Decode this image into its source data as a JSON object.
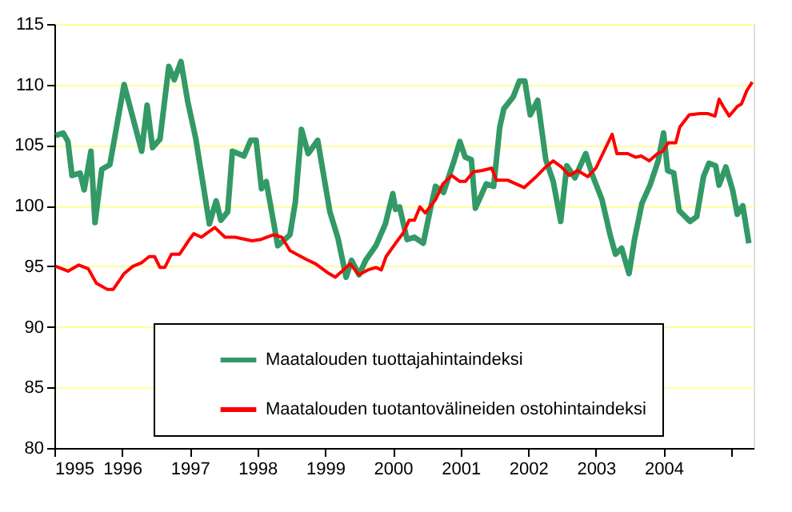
{
  "chart_data": {
    "type": "line",
    "xlim": [
      1995,
      2005.33
    ],
    "xticks": [
      1995,
      1996,
      1997,
      1998,
      1999,
      2000,
      2001,
      2002,
      2003,
      2004,
      {
        "value": 2005,
        "label": null
      }
    ],
    "ylim": [
      80,
      115
    ],
    "yticks": [
      80,
      85,
      90,
      95,
      100,
      105,
      110,
      115
    ],
    "grid": "y",
    "legend": "bottom",
    "line_style": "solid",
    "marker": "none",
    "series": [
      {
        "name": "Maatalouden tuottajahintaindeksi",
        "color": "#339966",
        "x": [
          1995.02,
          1995.13,
          1995.2,
          1995.26,
          1995.38,
          1995.44,
          1995.54,
          1995.6,
          1995.7,
          1995.82,
          1996.03,
          1996.29,
          1996.37,
          1996.45,
          1996.56,
          1996.69,
          1996.77,
          1996.87,
          1996.97,
          1997.09,
          1997.29,
          1997.39,
          1997.46,
          1997.56,
          1997.63,
          1997.8,
          1997.9,
          1997.98,
          1998.06,
          1998.13,
          1998.3,
          1998.48,
          1998.56,
          1998.65,
          1998.75,
          1998.89,
          1999.07,
          1999.19,
          1999.31,
          1999.39,
          1999.5,
          1999.6,
          1999.75,
          1999.89,
          2000.0,
          2000.04,
          2000.1,
          2000.21,
          2000.32,
          2000.45,
          2000.55,
          2000.63,
          2000.75,
          2000.91,
          2000.99,
          2001.07,
          2001.16,
          2001.22,
          2001.38,
          2001.49,
          2001.58,
          2001.64,
          2001.78,
          2001.87,
          2001.95,
          2002.03,
          2002.14,
          2002.26,
          2002.37,
          2002.48,
          2002.57,
          2002.69,
          2002.85,
          2002.95,
          2003.09,
          2003.21,
          2003.29,
          2003.38,
          2003.49,
          2003.57,
          2003.68,
          2003.8,
          2003.92,
          2004.0,
          2004.06,
          2004.15,
          2004.23,
          2004.39,
          2004.49,
          2004.59,
          2004.67,
          2004.77,
          2004.82,
          2004.92,
          2005.02,
          2005.09,
          2005.17,
          2005.26
        ],
        "values": [
          105.8,
          106,
          105.3,
          102.5,
          102.7,
          101.3,
          104.5,
          98.6,
          103,
          103.4,
          110,
          104.5,
          108.3,
          104.8,
          105.5,
          111.5,
          110.4,
          111.9,
          108.6,
          105.5,
          98.5,
          100.4,
          98.8,
          99.5,
          104.5,
          104.1,
          105.4,
          105.4,
          101.4,
          102,
          96.7,
          97.6,
          100.3,
          106.3,
          104.3,
          105.4,
          99.5,
          97.3,
          94.1,
          95.5,
          94.3,
          95.5,
          96.7,
          98.5,
          101,
          99.7,
          99.9,
          97.2,
          97.4,
          96.9,
          99.6,
          101.6,
          101.1,
          103.8,
          105.3,
          104,
          103.8,
          99.8,
          101.8,
          101.6,
          106.5,
          108,
          109,
          110.3,
          110.3,
          107.5,
          108.7,
          103.8,
          102,
          98.7,
          103.3,
          102.3,
          104.3,
          102.5,
          100.5,
          97.6,
          96,
          96.5,
          94.4,
          97.2,
          100.2,
          101.7,
          103.7,
          106,
          102.9,
          102.7,
          99.6,
          98.7,
          99.1,
          102.4,
          103.5,
          103.3,
          101.7,
          103.2,
          101.3,
          99.3,
          100,
          96.9
        ]
      },
      {
        "name": "Maatalouden tuotantovälineiden ostohintaindeksi",
        "color": "#ff0000",
        "x": [
          1995.02,
          1995.2,
          1995.36,
          1995.5,
          1995.62,
          1995.78,
          1995.87,
          1996.03,
          1996.16,
          1996.29,
          1996.4,
          1996.48,
          1996.56,
          1996.63,
          1996.73,
          1996.85,
          1996.98,
          1997.06,
          1997.17,
          1997.37,
          1997.52,
          1997.67,
          1997.92,
          1998.04,
          1998.24,
          1998.36,
          1998.48,
          1998.71,
          1998.86,
          1999.03,
          1999.15,
          1999.37,
          1999.5,
          1999.63,
          1999.75,
          1999.83,
          1999.9,
          2000.04,
          2000.16,
          2000.24,
          2000.32,
          2000.4,
          2000.48,
          2000.63,
          2000.74,
          2000.87,
          2000.99,
          2001.07,
          2001.19,
          2001.31,
          2001.46,
          2001.53,
          2001.7,
          2001.94,
          2002.1,
          2002.26,
          2002.37,
          2002.49,
          2002.61,
          2002.73,
          2002.88,
          2003.0,
          2003.12,
          2003.24,
          2003.31,
          2003.47,
          2003.59,
          2003.67,
          2003.79,
          2003.91,
          2003.99,
          2004.07,
          2004.18,
          2004.24,
          2004.38,
          2004.54,
          2004.66,
          2004.76,
          2004.82,
          2004.88,
          2004.97,
          2005.09,
          2005.15,
          2005.23,
          2005.31
        ],
        "values": [
          95,
          94.6,
          95.1,
          94.8,
          93.6,
          93.1,
          93.1,
          94.4,
          95,
          95.3,
          95.8,
          95.8,
          94.9,
          94.9,
          96,
          96,
          97.1,
          97.7,
          97.4,
          98.2,
          97.4,
          97.4,
          97.1,
          97.2,
          97.6,
          97.4,
          96.3,
          95.6,
          95.2,
          94.5,
          94.1,
          95.2,
          94.3,
          94.7,
          94.9,
          94.7,
          95.8,
          96.9,
          97.8,
          98.8,
          98.8,
          99.9,
          99.4,
          100.5,
          101.8,
          102.5,
          102,
          102,
          102.8,
          102.9,
          103.1,
          102.1,
          102.1,
          101.5,
          102.3,
          103.2,
          103.7,
          103.2,
          102.5,
          102.9,
          102.4,
          103.1,
          104.5,
          105.9,
          104.3,
          104.3,
          104,
          104.1,
          103.7,
          104.3,
          104.5,
          105.2,
          105.2,
          106.5,
          107.5,
          107.6,
          107.6,
          107.4,
          108.8,
          108.2,
          107.4,
          108.2,
          108.4,
          109.5,
          110.2
        ]
      }
    ]
  }
}
